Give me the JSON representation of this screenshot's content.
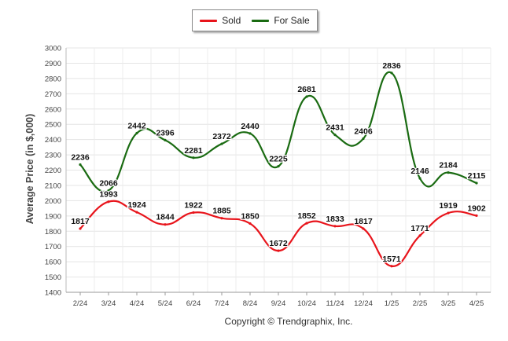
{
  "legend": {
    "sold_label": "Sold",
    "for_sale_label": "For Sale"
  },
  "footer": {
    "copyright": "Copyright © Trendgraphix, Inc."
  },
  "colors": {
    "sold": "#e8141b",
    "for_sale": "#1a6b12"
  },
  "chart_data": {
    "type": "line",
    "categories": [
      "2/24",
      "3/24",
      "4/24",
      "5/24",
      "6/24",
      "7/24",
      "8/24",
      "9/24",
      "10/24",
      "11/24",
      "12/24",
      "1/25",
      "2/25",
      "3/25",
      "4/25"
    ],
    "series": [
      {
        "name": "Sold",
        "values": [
          1817,
          1993,
          1924,
          1844,
          1922,
          1885,
          1850,
          1672,
          1852,
          1833,
          1817,
          1571,
          1771,
          1919,
          1902
        ]
      },
      {
        "name": "For Sale",
        "values": [
          2236,
          2066,
          2442,
          2396,
          2281,
          2372,
          2440,
          2225,
          2681,
          2431,
          2406,
          2836,
          2146,
          2184,
          2115
        ]
      }
    ],
    "ylabel": "Average Price (in $,000)",
    "xlabel": "",
    "ylim": [
      1400,
      3000
    ],
    "ytick_step": 100,
    "grid": true,
    "legend_position": "top-center",
    "smooth": true,
    "data_labels": true
  }
}
